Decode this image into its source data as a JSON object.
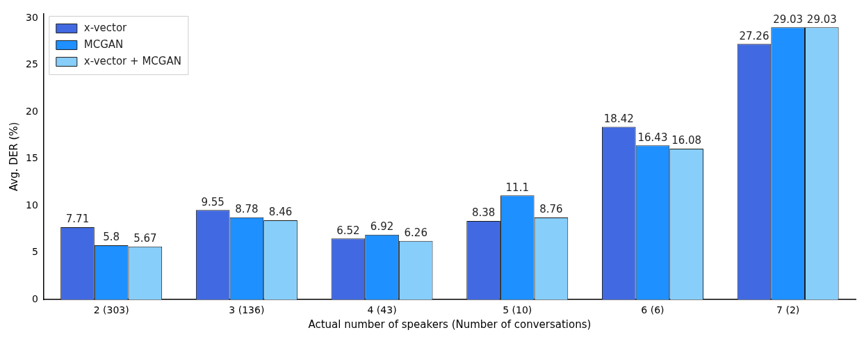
{
  "chart_data": {
    "type": "bar",
    "xlabel": "Actual number of speakers (Number of conversations)",
    "ylabel": "Avg. DER (%)",
    "categories": [
      "2 (303)",
      "3 (136)",
      "4 (43)",
      "5 (10)",
      "6 (6)",
      "7 (2)"
    ],
    "series": [
      {
        "name": "x-vector",
        "color": "#4169e1",
        "values": [
          7.71,
          9.55,
          6.52,
          8.38,
          18.42,
          27.26
        ]
      },
      {
        "name": "MCGAN",
        "color": "#1e90ff",
        "values": [
          5.8,
          8.78,
          6.92,
          11.1,
          16.43,
          29.03
        ]
      },
      {
        "name": "x-vector + MCGAN",
        "color": "#87cefa",
        "values": [
          5.67,
          8.46,
          6.26,
          8.76,
          16.08,
          29.03
        ]
      }
    ],
    "ylim": [
      0,
      30.5
    ],
    "yticks": [
      0,
      5,
      10,
      15,
      20,
      25,
      30
    ],
    "grid": false,
    "legend": "top left",
    "data_labels": true
  }
}
